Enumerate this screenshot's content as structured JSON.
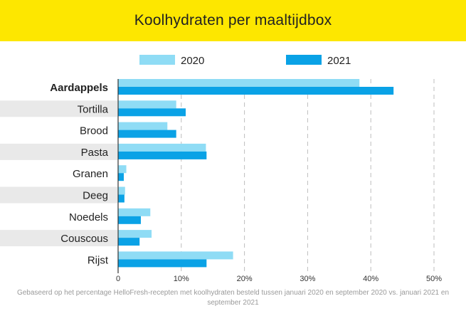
{
  "colors": {
    "banner": "#fde700",
    "series_2020": "#8fdcf5",
    "series_2021": "#0aa2e6",
    "stripe": "#e9e9e9",
    "grid": "#bdbdbd"
  },
  "chart_data": {
    "type": "bar",
    "orientation": "horizontal",
    "title": "Koolhydraten per maaltijdbox",
    "categories": [
      "Aardappels",
      "Tortilla",
      "Brood",
      "Pasta",
      "Granen",
      "Deeg",
      "Noedels",
      "Couscous",
      "Rijst"
    ],
    "series": [
      {
        "name": "2020",
        "values": [
          38.2,
          9.2,
          7.8,
          13.9,
          1.3,
          1.1,
          5.1,
          5.3,
          18.2
        ]
      },
      {
        "name": "2021",
        "values": [
          43.6,
          10.7,
          9.2,
          14.0,
          0.9,
          1.0,
          3.6,
          3.4,
          14.0
        ]
      }
    ],
    "x_ticks": [
      "0",
      "10%",
      "20%",
      "30%",
      "40%",
      "50%"
    ],
    "x_tick_values": [
      0,
      10,
      20,
      30,
      40,
      50
    ],
    "xlim": [
      0,
      50
    ],
    "grid": true,
    "legend_position": "top",
    "highlight_category": "Aardappels"
  },
  "footnote": "Gebaseerd op het percentage HelloFresh-recepten met koolhydraten besteld tussen januari 2020 en september 2020 vs. januari 2021 en september 2021"
}
